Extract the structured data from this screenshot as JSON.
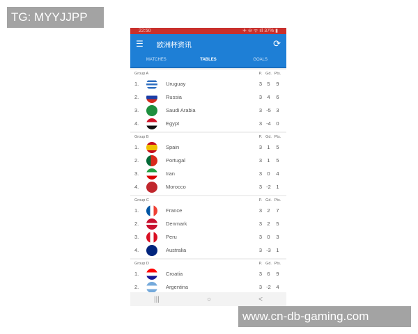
{
  "watermarks": {
    "top_left": "TG: MYYJJPP",
    "bottom_right": "www.cn-db-gaming.com"
  },
  "status_bar": {
    "time": "22:50",
    "right": "✈ ⊖ ᯤ ıll 37% ▮"
  },
  "app_bar": {
    "title": "欧洲杯资讯",
    "menu_icon": "hamburger-icon",
    "refresh_icon": "refresh-icon"
  },
  "tabs": [
    {
      "label": "MATCHES"
    },
    {
      "label": "TABLES",
      "active": true
    },
    {
      "label": "GOALS"
    }
  ],
  "columns": {
    "p": "P.",
    "gd": "Gd.",
    "pts": "Pts."
  },
  "groups": [
    {
      "name": "Group A",
      "teams": [
        {
          "pos": "1.",
          "name": "Uruguay",
          "p": "3",
          "gd": "5",
          "pts": "9",
          "flag": "linear-gradient(#fff 0 15%,#2f6fc0 15% 30%,#fff 30% 45%,#2f6fc0 45% 60%,#fff 60% 75%,#2f6fc0 75% 90%,#fff 90%)"
        },
        {
          "pos": "2.",
          "name": "Russia",
          "p": "3",
          "gd": "4",
          "pts": "6",
          "flag": "linear-gradient(#fff 0 33%,#1c3fa8 33% 66%,#d52b1e 66%)"
        },
        {
          "pos": "3.",
          "name": "Saudi Arabia",
          "p": "3",
          "gd": "-5",
          "pts": "3",
          "flag": "#1e8f3e"
        },
        {
          "pos": "4.",
          "name": "Egypt",
          "p": "3",
          "gd": "-4",
          "pts": "0",
          "flag": "linear-gradient(#ce1126 0 33%,#fff 33% 66%,#111 66%)"
        }
      ]
    },
    {
      "name": "Group B",
      "teams": [
        {
          "pos": "1.",
          "name": "Spain",
          "p": "3",
          "gd": "1",
          "pts": "5",
          "flag": "linear-gradient(#c60b1e 0 25%,#f1bf00 25% 75%,#c60b1e 75%)"
        },
        {
          "pos": "2.",
          "name": "Portugal",
          "p": "3",
          "gd": "1",
          "pts": "5",
          "flag": "linear-gradient(90deg,#046a38 0 40%,#da291c 40%)"
        },
        {
          "pos": "3.",
          "name": "Iran",
          "p": "3",
          "gd": "0",
          "pts": "4",
          "flag": "linear-gradient(#239f40 0 33%,#fff 33% 66%,#da0000 66%)"
        },
        {
          "pos": "4.",
          "name": "Morocco",
          "p": "3",
          "gd": "-2",
          "pts": "1",
          "flag": "#c1272d"
        }
      ]
    },
    {
      "name": "Group C",
      "teams": [
        {
          "pos": "1.",
          "name": "France",
          "p": "3",
          "gd": "2",
          "pts": "7",
          "flag": "linear-gradient(90deg,#0055a4 0 33%,#fff 33% 66%,#ef4135 66%)"
        },
        {
          "pos": "2.",
          "name": "Denmark",
          "p": "3",
          "gd": "2",
          "pts": "5",
          "flag": "linear-gradient(#c8102e 0 40%,#fff 40% 55%,#c8102e 55%)"
        },
        {
          "pos": "3.",
          "name": "Peru",
          "p": "3",
          "gd": "0",
          "pts": "3",
          "flag": "linear-gradient(90deg,#d91023 0 33%,#fff 33% 66%,#d91023 66%)"
        },
        {
          "pos": "4.",
          "name": "Australia",
          "p": "3",
          "gd": "-3",
          "pts": "1",
          "flag": "#00247d"
        }
      ]
    },
    {
      "name": "Group D",
      "teams": [
        {
          "pos": "1.",
          "name": "Croatia",
          "p": "3",
          "gd": "6",
          "pts": "9",
          "flag": "linear-gradient(#ff0000 0 33%,#fff 33% 66%,#171796 66%)"
        },
        {
          "pos": "2.",
          "name": "Argentina",
          "p": "3",
          "gd": "-2",
          "pts": "4",
          "flag": "linear-gradient(#75aadb 0 33%,#fff 33% 66%,#75aadb 66%)"
        }
      ]
    }
  ],
  "nav": {
    "recent": "|||",
    "home": "○",
    "back": "<"
  },
  "colors": {
    "status": "#c9302c",
    "app_bar": "#1e7fd6"
  }
}
